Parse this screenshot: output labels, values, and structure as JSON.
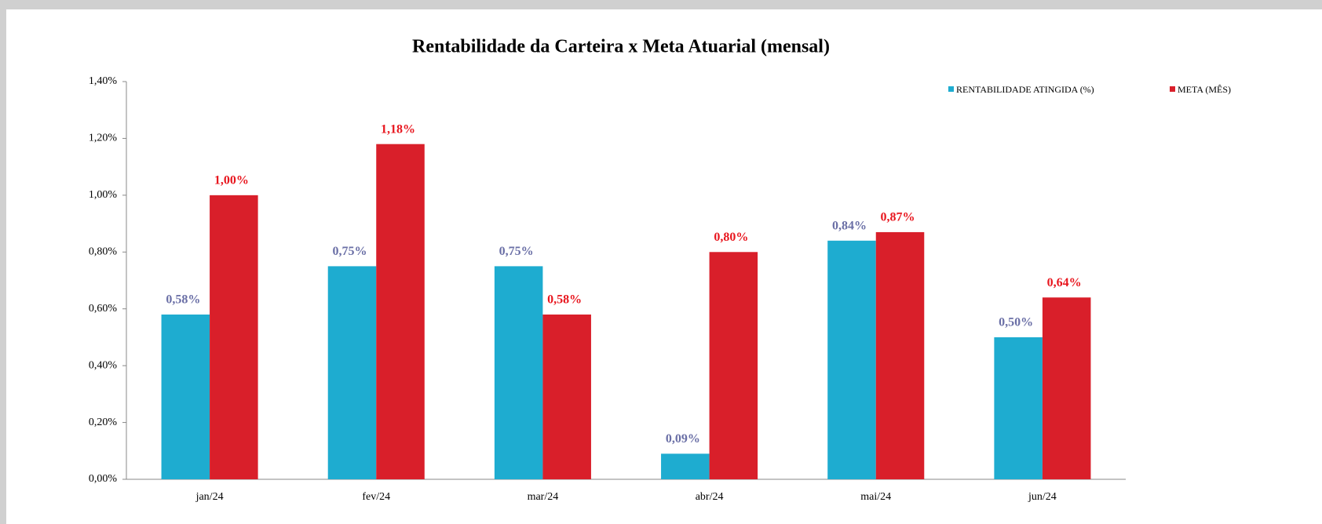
{
  "chart_data": {
    "type": "bar",
    "title": "Rentabilidade  da Carteira  x Meta Atuarial  (mensal)",
    "categories": [
      "jan/24",
      "fev/24",
      "mar/24",
      "abr/24",
      "mai/24",
      "jun/24"
    ],
    "series": [
      {
        "name": "RENTABILIDADE ATINGIDA (%)",
        "color": "#1eacd0",
        "label_color": "#6a6fa6",
        "values": [
          0.58,
          0.75,
          0.75,
          0.09,
          0.84,
          0.5
        ],
        "value_labels": [
          "0,58%",
          "0,75%",
          "0,75%",
          "0,09%",
          "0,84%",
          "0,50%"
        ]
      },
      {
        "name": "META (MÊS)",
        "color": "#d91f2a",
        "label_color": "#e8161e",
        "values": [
          1.0,
          1.18,
          0.58,
          0.8,
          0.87,
          0.64
        ],
        "value_labels": [
          "1,00%",
          "1,18%",
          "0,58%",
          "0,80%",
          "0,87%",
          "0,64%"
        ]
      }
    ],
    "ylim": [
      0,
      1.4
    ],
    "yticks": [
      {
        "value": 0,
        "label": "0,00%"
      },
      {
        "value": 0.2,
        "label": "0,20%"
      },
      {
        "value": 0.4,
        "label": "0,40%"
      },
      {
        "value": 0.6,
        "label": "0,60%"
      },
      {
        "value": 0.8,
        "label": "0,80%"
      },
      {
        "value": 1.0,
        "label": "1,00%"
      },
      {
        "value": 1.2,
        "label": "1,20%"
      },
      {
        "value": 1.4,
        "label": "1,40%"
      }
    ],
    "grid": false,
    "legend": "top-right"
  }
}
